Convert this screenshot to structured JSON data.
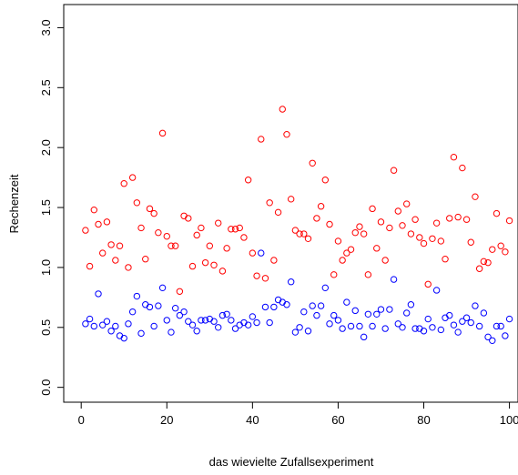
{
  "chart_data": {
    "type": "scatter",
    "title": "",
    "xlabel": "das wievielte Zufallsexperiment",
    "ylabel": "Rechenzeit",
    "xlim": [
      0,
      102
    ],
    "ylim": [
      0,
      3.1
    ],
    "xticks": [
      0,
      20,
      40,
      60,
      80,
      100
    ],
    "yticks": [
      0.0,
      0.5,
      1.0,
      1.5,
      2.0,
      2.5,
      3.0
    ],
    "xtick_labels": [
      "0",
      "20",
      "40",
      "60",
      "80",
      "100"
    ],
    "ytick_labels": [
      "0.0",
      "0.5",
      "1.0",
      "1.5",
      "2.0",
      "2.5",
      "3.0"
    ],
    "grid": false,
    "legend": null,
    "series": [
      {
        "color": "#ff0000",
        "marker": "open-circle",
        "x": [
          1,
          2,
          3,
          4,
          5,
          6,
          7,
          8,
          9,
          10,
          11,
          12,
          13,
          14,
          15,
          16,
          17,
          18,
          19,
          20,
          21,
          22,
          23,
          24,
          25,
          26,
          27,
          28,
          29,
          30,
          31,
          32,
          33,
          34,
          35,
          36,
          37,
          38,
          39,
          40,
          41,
          42,
          43,
          44,
          45,
          46,
          47,
          48,
          49,
          50,
          51,
          52,
          53,
          54,
          55,
          56,
          57,
          58,
          59,
          60,
          61,
          62,
          63,
          64,
          65,
          66,
          67,
          68,
          69,
          70,
          71,
          72,
          73,
          74,
          75,
          76,
          77,
          78,
          79,
          80,
          81,
          82,
          83,
          84,
          85,
          86,
          87,
          88,
          89,
          90,
          91,
          92,
          93,
          94,
          95,
          96,
          97,
          98,
          99,
          100
        ],
        "y": [
          1.31,
          1.01,
          1.48,
          1.36,
          1.12,
          1.38,
          1.19,
          1.06,
          1.18,
          1.7,
          1.0,
          1.75,
          1.54,
          1.33,
          1.07,
          1.49,
          1.45,
          1.29,
          2.12,
          1.26,
          1.18,
          1.18,
          0.8,
          1.43,
          1.41,
          1.01,
          1.27,
          1.33,
          1.04,
          1.18,
          1.02,
          1.37,
          0.97,
          1.16,
          1.32,
          1.32,
          1.33,
          1.25,
          1.73,
          1.12,
          0.93,
          2.07,
          0.91,
          1.54,
          1.06,
          1.46,
          2.32,
          2.11,
          1.57,
          1.31,
          1.28,
          1.28,
          1.24,
          1.87,
          1.41,
          1.51,
          1.73,
          1.36,
          0.94,
          1.22,
          1.06,
          1.12,
          1.15,
          1.29,
          1.34,
          1.28,
          0.94,
          1.49,
          1.16,
          1.38,
          1.06,
          1.33,
          1.81,
          1.47,
          1.35,
          1.53,
          1.28,
          1.4,
          1.25,
          1.2,
          0.86,
          1.24,
          1.37,
          1.22,
          1.07,
          1.41,
          1.92,
          1.42,
          1.83,
          1.4,
          1.21,
          1.59,
          0.99,
          1.05,
          1.04,
          1.15,
          1.45,
          1.18,
          1.13,
          1.39
        ]
      },
      {
        "color": "#0000ff",
        "marker": "open-circle",
        "x": [
          1,
          2,
          3,
          4,
          5,
          6,
          7,
          8,
          9,
          10,
          11,
          12,
          13,
          14,
          15,
          16,
          17,
          18,
          19,
          20,
          21,
          22,
          23,
          24,
          25,
          26,
          27,
          28,
          29,
          30,
          31,
          32,
          33,
          34,
          35,
          36,
          37,
          38,
          39,
          40,
          41,
          42,
          43,
          44,
          45,
          46,
          47,
          48,
          49,
          50,
          51,
          52,
          53,
          54,
          55,
          56,
          57,
          58,
          59,
          60,
          61,
          62,
          63,
          64,
          65,
          66,
          67,
          68,
          69,
          70,
          71,
          72,
          73,
          74,
          75,
          76,
          77,
          78,
          79,
          80,
          81,
          82,
          83,
          84,
          85,
          86,
          87,
          88,
          89,
          90,
          91,
          92,
          93,
          94,
          95,
          96,
          97,
          98,
          99,
          100
        ],
        "y": [
          0.53,
          0.57,
          0.51,
          0.78,
          0.52,
          0.55,
          0.47,
          0.51,
          0.43,
          0.41,
          0.53,
          0.63,
          0.76,
          0.45,
          0.69,
          0.67,
          0.51,
          0.68,
          0.83,
          0.56,
          0.46,
          0.66,
          0.6,
          0.63,
          0.55,
          0.52,
          0.47,
          0.56,
          0.56,
          0.57,
          0.55,
          0.5,
          0.6,
          0.61,
          0.56,
          0.49,
          0.52,
          0.54,
          0.52,
          0.59,
          0.54,
          1.12,
          0.67,
          0.54,
          0.67,
          0.73,
          0.71,
          0.69,
          0.88,
          0.46,
          0.5,
          0.63,
          0.47,
          0.68,
          0.6,
          0.68,
          0.83,
          0.53,
          0.6,
          0.56,
          0.49,
          0.71,
          0.51,
          0.64,
          0.51,
          0.42,
          0.61,
          0.51,
          0.61,
          0.65,
          0.49,
          0.65,
          0.9,
          0.53,
          0.5,
          0.62,
          0.69,
          0.49,
          0.49,
          0.47,
          0.57,
          0.5,
          0.81,
          0.48,
          0.58,
          0.6,
          0.52,
          0.46,
          0.55,
          0.58,
          0.54,
          0.68,
          0.51,
          0.62,
          0.42,
          0.39,
          0.51,
          0.51,
          0.43,
          0.57
        ]
      }
    ]
  }
}
